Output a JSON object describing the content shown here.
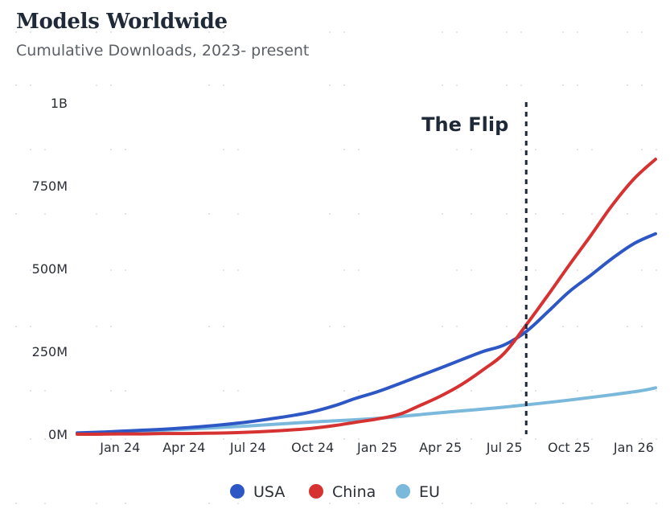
{
  "title": "Models Worldwide",
  "subtitle": "Cumulative Downloads, 2023- present",
  "chart_data": {
    "type": "line",
    "title": "Models Worldwide",
    "subtitle": "Cumulative Downloads, 2023- present",
    "xlabel": "",
    "ylabel": "",
    "y_unit": "downloads",
    "ylim": [
      0,
      1000000000
    ],
    "y_ticks": [
      {
        "value": 0,
        "label": "0M"
      },
      {
        "value": 250000000,
        "label": "250M"
      },
      {
        "value": 500000000,
        "label": "500M"
      },
      {
        "value": 750000000,
        "label": "750M"
      },
      {
        "value": 1000000000,
        "label": "1B"
      }
    ],
    "xlim": [
      "2023-11-01",
      "2026-02-01"
    ],
    "x_ticks": [
      {
        "value": "2024-01-01",
        "label": "Jan 24"
      },
      {
        "value": "2024-04-01",
        "label": "Apr 24"
      },
      {
        "value": "2024-07-01",
        "label": "Jul 24"
      },
      {
        "value": "2024-10-01",
        "label": "Oct 24"
      },
      {
        "value": "2025-01-01",
        "label": "Jan 25"
      },
      {
        "value": "2025-04-01",
        "label": "Apr 25"
      },
      {
        "value": "2025-07-01",
        "label": "Jul 25"
      },
      {
        "value": "2025-10-01",
        "label": "Oct 25"
      },
      {
        "value": "2026-01-01",
        "label": "Jan 26"
      }
    ],
    "grid": "dotted",
    "legend_position": "bottom-center",
    "series": [
      {
        "name": "USA",
        "color": "#2d57c4",
        "points": [
          {
            "x": "2023-11-01",
            "y": 4000000
          },
          {
            "x": "2023-12-01",
            "y": 6000000
          },
          {
            "x": "2024-01-01",
            "y": 9000000
          },
          {
            "x": "2024-02-01",
            "y": 12000000
          },
          {
            "x": "2024-03-01",
            "y": 15000000
          },
          {
            "x": "2024-04-01",
            "y": 19000000
          },
          {
            "x": "2024-05-01",
            "y": 24000000
          },
          {
            "x": "2024-06-01",
            "y": 30000000
          },
          {
            "x": "2024-07-01",
            "y": 37000000
          },
          {
            "x": "2024-08-01",
            "y": 46000000
          },
          {
            "x": "2024-09-01",
            "y": 56000000
          },
          {
            "x": "2024-10-01",
            "y": 68000000
          },
          {
            "x": "2024-11-01",
            "y": 86000000
          },
          {
            "x": "2024-12-01",
            "y": 108000000
          },
          {
            "x": "2025-01-01",
            "y": 128000000
          },
          {
            "x": "2025-02-01",
            "y": 152000000
          },
          {
            "x": "2025-03-01",
            "y": 175000000
          },
          {
            "x": "2025-04-01",
            "y": 200000000
          },
          {
            "x": "2025-05-01",
            "y": 225000000
          },
          {
            "x": "2025-06-01",
            "y": 250000000
          },
          {
            "x": "2025-07-01",
            "y": 270000000
          },
          {
            "x": "2025-08-01",
            "y": 310000000
          },
          {
            "x": "2025-09-01",
            "y": 370000000
          },
          {
            "x": "2025-10-01",
            "y": 430000000
          },
          {
            "x": "2025-11-01",
            "y": 480000000
          },
          {
            "x": "2025-12-01",
            "y": 530000000
          },
          {
            "x": "2026-01-01",
            "y": 575000000
          },
          {
            "x": "2026-02-01",
            "y": 605000000
          }
        ]
      },
      {
        "name": "China",
        "color": "#d63232",
        "points": [
          {
            "x": "2023-11-01",
            "y": 0
          },
          {
            "x": "2023-12-01",
            "y": 0
          },
          {
            "x": "2024-01-01",
            "y": 1000000
          },
          {
            "x": "2024-02-01",
            "y": 1000000
          },
          {
            "x": "2024-03-01",
            "y": 2000000
          },
          {
            "x": "2024-04-01",
            "y": 2000000
          },
          {
            "x": "2024-05-01",
            "y": 3000000
          },
          {
            "x": "2024-06-01",
            "y": 4000000
          },
          {
            "x": "2024-07-01",
            "y": 6000000
          },
          {
            "x": "2024-08-01",
            "y": 9000000
          },
          {
            "x": "2024-09-01",
            "y": 13000000
          },
          {
            "x": "2024-10-01",
            "y": 18000000
          },
          {
            "x": "2024-11-01",
            "y": 26000000
          },
          {
            "x": "2024-12-01",
            "y": 36000000
          },
          {
            "x": "2025-01-01",
            "y": 46000000
          },
          {
            "x": "2025-02-01",
            "y": 60000000
          },
          {
            "x": "2025-03-01",
            "y": 85000000
          },
          {
            "x": "2025-04-01",
            "y": 115000000
          },
          {
            "x": "2025-05-01",
            "y": 150000000
          },
          {
            "x": "2025-06-01",
            "y": 195000000
          },
          {
            "x": "2025-07-01",
            "y": 245000000
          },
          {
            "x": "2025-08-01",
            "y": 330000000
          },
          {
            "x": "2025-09-01",
            "y": 420000000
          },
          {
            "x": "2025-10-01",
            "y": 510000000
          },
          {
            "x": "2025-11-01",
            "y": 600000000
          },
          {
            "x": "2025-12-01",
            "y": 690000000
          },
          {
            "x": "2026-01-01",
            "y": 770000000
          },
          {
            "x": "2026-02-01",
            "y": 830000000
          }
        ]
      },
      {
        "name": "EU",
        "color": "#7ab8dc",
        "points": [
          {
            "x": "2023-11-01",
            "y": 2000000
          },
          {
            "x": "2024-01-01",
            "y": 6000000
          },
          {
            "x": "2024-04-01",
            "y": 15000000
          },
          {
            "x": "2024-07-01",
            "y": 25000000
          },
          {
            "x": "2024-10-01",
            "y": 37000000
          },
          {
            "x": "2025-01-01",
            "y": 48000000
          },
          {
            "x": "2025-04-01",
            "y": 65000000
          },
          {
            "x": "2025-07-01",
            "y": 82000000
          },
          {
            "x": "2025-10-01",
            "y": 103000000
          },
          {
            "x": "2026-01-01",
            "y": 128000000
          },
          {
            "x": "2026-02-01",
            "y": 140000000
          }
        ]
      }
    ],
    "annotations": [
      {
        "type": "vertical-line",
        "x": "2025-08-01",
        "style": "dashed",
        "color": "#1f2937",
        "label": "The Flip"
      }
    ]
  }
}
